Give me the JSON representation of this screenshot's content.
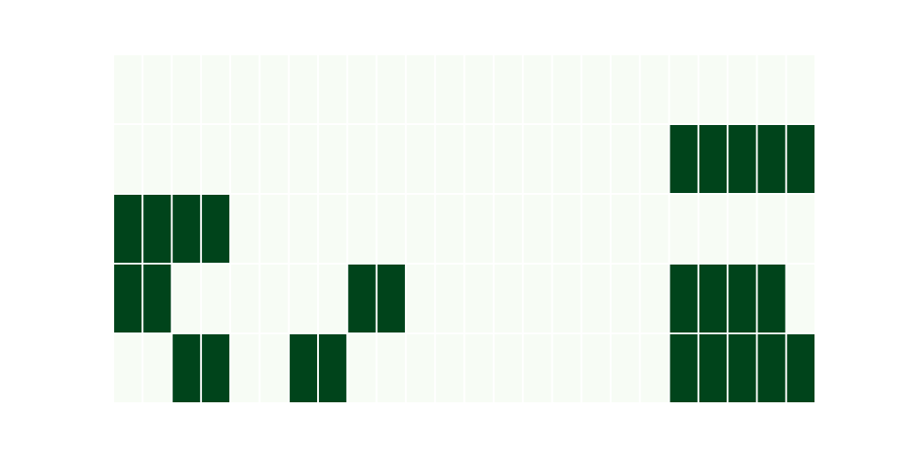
{
  "chart_data": {
    "type": "heatmap",
    "rows": 5,
    "cols": 24,
    "values": [
      [
        0,
        0,
        0,
        0,
        0,
        0,
        0,
        0,
        0,
        0,
        0,
        0,
        0,
        0,
        0,
        0,
        0,
        0,
        0,
        0,
        0,
        0,
        0,
        0
      ],
      [
        0,
        0,
        0,
        0,
        0,
        0,
        0,
        0,
        0,
        0,
        0,
        0,
        0,
        0,
        0,
        0,
        0,
        0,
        0,
        1,
        1,
        1,
        1,
        1
      ],
      [
        1,
        1,
        1,
        1,
        0,
        0,
        0,
        0,
        0,
        0,
        0,
        0,
        0,
        0,
        0,
        0,
        0,
        0,
        0,
        0,
        0,
        0,
        0,
        0
      ],
      [
        1,
        1,
        0,
        0,
        0,
        0,
        0,
        0,
        1,
        1,
        0,
        0,
        0,
        0,
        0,
        0,
        0,
        0,
        0,
        1,
        1,
        1,
        1,
        0
      ],
      [
        0,
        0,
        1,
        1,
        0,
        0,
        1,
        1,
        0,
        0,
        0,
        0,
        0,
        0,
        0,
        0,
        0,
        0,
        0,
        1,
        1,
        1,
        1,
        1
      ]
    ],
    "vmin": 0,
    "vmax": 1,
    "colorscale": {
      "low": "#f7fcf5",
      "high": "#00441b"
    },
    "grid_line_color": "#ffffff",
    "title": "",
    "xlabel": "",
    "ylabel": "",
    "legend": "none"
  }
}
